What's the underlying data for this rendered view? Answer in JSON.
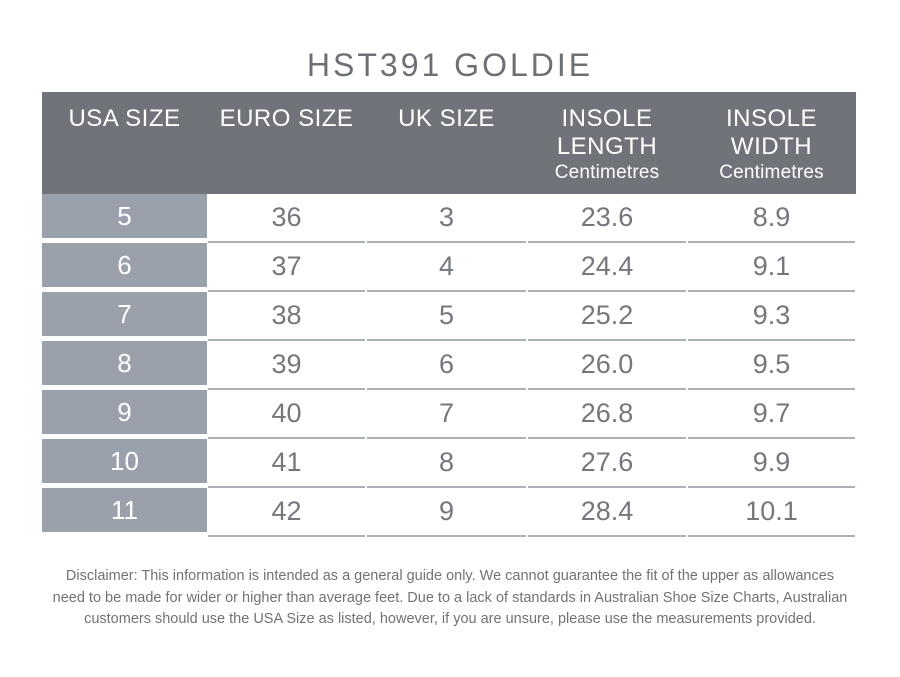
{
  "title": "HST391 GOLDIE",
  "table": {
    "columns": [
      {
        "label": "USA SIZE",
        "sublabel": ""
      },
      {
        "label": "EURO SIZE",
        "sublabel": ""
      },
      {
        "label": "UK SIZE",
        "sublabel": ""
      },
      {
        "label": "INSOLE LENGTH",
        "sublabel": "Centimetres"
      },
      {
        "label": "INSOLE WIDTH",
        "sublabel": "Centimetres"
      }
    ],
    "rows": [
      [
        "5",
        "36",
        "3",
        "23.6",
        "8.9"
      ],
      [
        "6",
        "37",
        "4",
        "24.4",
        "9.1"
      ],
      [
        "7",
        "38",
        "5",
        "25.2",
        "9.3"
      ],
      [
        "8",
        "39",
        "6",
        "26.0",
        "9.5"
      ],
      [
        "9",
        "40",
        "7",
        "26.8",
        "9.7"
      ],
      [
        "10",
        "41",
        "8",
        "27.6",
        "9.9"
      ],
      [
        "11",
        "42",
        "9",
        "28.4",
        "10.1"
      ]
    ]
  },
  "disclaimer": {
    "lines": [
      "Disclaimer: This information is intended as a general guide only. We cannot guarantee the fit of the upper as allowances",
      "need to be made for wider or higher than average feet. Due to a lack of standards in Australian Shoe Size Charts, Australian",
      "customers should use the USA Size as listed, however, if you are unsure, please use the measurements provided."
    ]
  },
  "colors": {
    "header_bg": "#70747A",
    "usa_column_bg": "#9AA1AA",
    "row_line": "#ABB1B7",
    "data_text": "#74787D",
    "title_text": "#6C7075",
    "header_text": "#FFFFFF"
  }
}
